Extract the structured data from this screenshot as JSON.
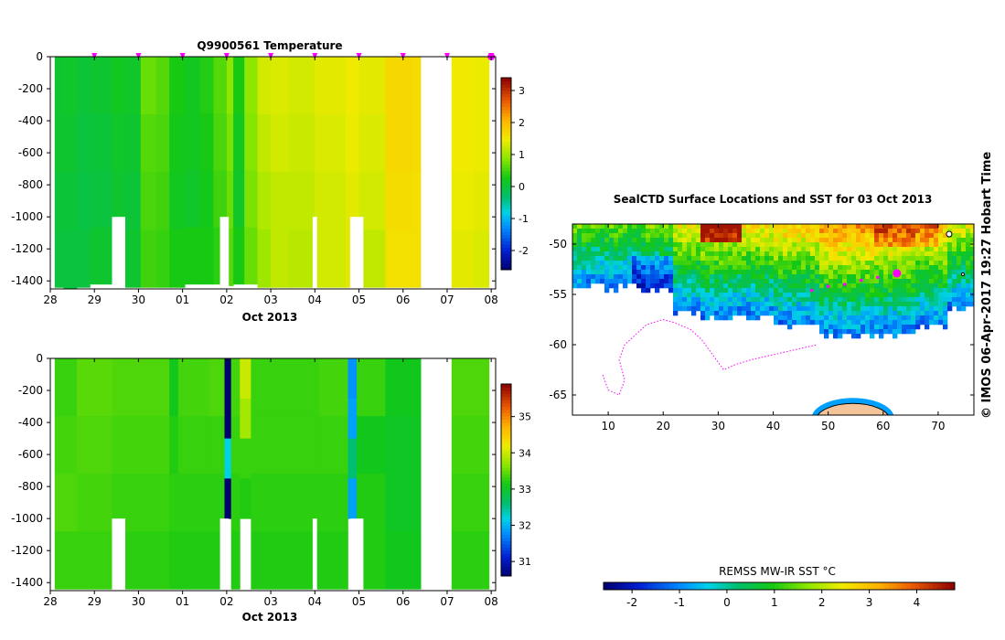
{
  "chart_data": [
    {
      "type": "heatmap",
      "panel": "temperature-section",
      "title": "Q9900561   Temperature",
      "xlabel": "Oct 2013",
      "ylabel": "",
      "x_ticks": [
        "28",
        "29",
        "30",
        "01",
        "02",
        "03",
        "04",
        "05",
        "06",
        "07",
        "08"
      ],
      "x_range": [
        0,
        10.1
      ],
      "y_ticks": [
        0,
        -200,
        -400,
        -600,
        -800,
        -1000,
        -1200,
        -1400
      ],
      "y_range": [
        -1450,
        0
      ],
      "surface_marker_days": [
        1,
        2,
        3,
        4,
        5,
        6,
        7,
        8,
        9,
        10,
        10
      ],
      "colorbar": {
        "ticks": [
          -2,
          -1,
          0,
          1,
          2,
          3
        ],
        "range": [
          -2.6,
          3.4
        ]
      },
      "columns": [
        {
          "x0": 0.1,
          "x1": 0.3,
          "depth": -1440,
          "values": [
            0.1,
            0.1,
            0.05,
            0.0
          ]
        },
        {
          "x0": 0.3,
          "x1": 0.6,
          "depth": -1450,
          "values": [
            0.15,
            0.1,
            0.05,
            0.0
          ]
        },
        {
          "x0": 0.6,
          "x1": 0.9,
          "depth": -1440,
          "values": [
            0.05,
            0.0,
            -0.05,
            0.0
          ]
        },
        {
          "x0": 0.9,
          "x1": 1.4,
          "depth": -1420,
          "values": [
            0.1,
            0.05,
            0.0,
            0.1
          ]
        },
        {
          "x0": 1.4,
          "x1": 1.7,
          "depth": -1420,
          "values": [
            0.2,
            0.15,
            0.1,
            0.1
          ]
        },
        {
          "x0": 1.7,
          "x1": 2.05,
          "depth": -1440,
          "values": [
            0.15,
            0.1,
            0.05,
            0.1
          ]
        },
        {
          "x0": 2.05,
          "x1": 2.4,
          "depth": -1440,
          "values": [
            0.7,
            0.6,
            0.55,
            0.5
          ]
        },
        {
          "x0": 2.4,
          "x1": 2.7,
          "depth": -1440,
          "values": [
            0.6,
            0.55,
            0.5,
            0.45
          ]
        },
        {
          "x0": 2.7,
          "x1": 3.05,
          "depth": -1440,
          "values": [
            0.3,
            0.25,
            0.2,
            0.3
          ]
        },
        {
          "x0": 3.05,
          "x1": 3.4,
          "depth": -1420,
          "values": [
            0.2,
            0.2,
            0.15,
            0.3
          ]
        },
        {
          "x0": 3.4,
          "x1": 3.7,
          "depth": -1420,
          "values": [
            0.35,
            0.3,
            0.25,
            0.3
          ]
        },
        {
          "x0": 3.7,
          "x1": 4.0,
          "depth": -1420,
          "values": [
            0.6,
            0.55,
            0.5,
            0.4
          ]
        },
        {
          "x0": 4.0,
          "x1": 4.15,
          "depth": -1430,
          "values": [
            0.9,
            0.8,
            0.7,
            0.6
          ]
        },
        {
          "x0": 4.15,
          "x1": 4.4,
          "depth": -1420,
          "values": [
            0.3,
            0.2,
            0.15,
            0.3
          ]
        },
        {
          "x0": 4.4,
          "x1": 4.7,
          "depth": -1420,
          "values": [
            0.9,
            0.85,
            0.8,
            0.7
          ]
        },
        {
          "x0": 4.7,
          "x1": 5.0,
          "depth": -1440,
          "values": [
            1.3,
            1.2,
            1.1,
            1.0
          ]
        },
        {
          "x0": 5.0,
          "x1": 5.4,
          "depth": -1440,
          "values": [
            1.35,
            1.3,
            1.2,
            1.2
          ]
        },
        {
          "x0": 5.4,
          "x1": 6.0,
          "depth": -1440,
          "values": [
            1.3,
            1.25,
            1.2,
            1.15
          ]
        },
        {
          "x0": 6.0,
          "x1": 6.7,
          "depth": -1440,
          "values": [
            1.4,
            1.35,
            1.3,
            1.3
          ]
        },
        {
          "x0": 6.7,
          "x1": 7.0,
          "depth": -1440,
          "values": [
            1.5,
            1.45,
            1.4,
            1.4
          ]
        },
        {
          "x0": 7.0,
          "x1": 7.6,
          "depth": -1440,
          "values": [
            1.4,
            1.35,
            1.3,
            1.2
          ]
        },
        {
          "x0": 7.6,
          "x1": 8.2,
          "depth": -1440,
          "values": [
            1.7,
            1.7,
            1.65,
            1.6
          ]
        },
        {
          "x0": 8.2,
          "x1": 8.4,
          "depth": -1440,
          "values": [
            1.65,
            1.65,
            1.6,
            1.6
          ]
        },
        {
          "x0": 9.1,
          "x1": 9.6,
          "depth": -1440,
          "values": [
            1.5,
            1.5,
            1.45,
            1.4
          ]
        },
        {
          "x0": 9.6,
          "x1": 9.95,
          "depth": -1440,
          "values": [
            1.45,
            1.45,
            1.4,
            1.35
          ]
        }
      ],
      "gaps": [
        {
          "x0": 1.4,
          "x1": 1.7,
          "top": -1000
        },
        {
          "x0": 3.85,
          "x1": 4.05,
          "top": -1000
        },
        {
          "x0": 5.95,
          "x1": 6.05,
          "top": -1000
        },
        {
          "x0": 6.8,
          "x1": 7.1,
          "top": -1000
        }
      ]
    },
    {
      "type": "heatmap",
      "panel": "salinity-section",
      "title": "",
      "xlabel": "Oct 2013",
      "ylabel": "",
      "x_ticks": [
        "28",
        "29",
        "30",
        "01",
        "02",
        "03",
        "04",
        "05",
        "06",
        "07",
        "08"
      ],
      "x_range": [
        0,
        10.1
      ],
      "y_ticks": [
        0,
        -200,
        -400,
        -600,
        -800,
        -1000,
        -1200,
        -1400
      ],
      "y_range": [
        -1450,
        0
      ],
      "colorbar": {
        "ticks": [
          31,
          32,
          33,
          34,
          35
        ],
        "range": [
          30.6,
          35.9
        ]
      },
      "columns": [
        {
          "x0": 0.1,
          "x1": 0.6,
          "depth": -1440,
          "values": [
            33.3,
            33.35,
            33.4,
            33.3
          ]
        },
        {
          "x0": 0.6,
          "x1": 1.4,
          "depth": -1440,
          "values": [
            33.45,
            33.4,
            33.35,
            33.3
          ]
        },
        {
          "x0": 1.4,
          "x1": 2.7,
          "depth": -1440,
          "values": [
            33.4,
            33.35,
            33.3,
            33.25
          ]
        },
        {
          "x0": 2.7,
          "x1": 2.9,
          "depth": -1440,
          "values": [
            33.1,
            33.2,
            33.25,
            33.2
          ]
        },
        {
          "x0": 2.9,
          "x1": 3.6,
          "depth": -1440,
          "values": [
            33.35,
            33.3,
            33.25,
            33.2
          ]
        },
        {
          "x0": 3.6,
          "x1": 3.95,
          "depth": -1440,
          "values": [
            33.4,
            33.3,
            33.25,
            33.2
          ]
        },
        {
          "x0": 3.95,
          "x1": 4.1,
          "depth": -1000,
          "values": [
            30.6,
            30.6,
            32.2,
            30.6
          ]
        },
        {
          "x0": 4.1,
          "x1": 4.3,
          "depth": -1440,
          "values": [
            33.35,
            33.3,
            33.25,
            33.2
          ]
        },
        {
          "x0": 4.3,
          "x1": 4.55,
          "depth": -1000,
          "values": [
            34.0,
            33.8,
            33.3,
            33.2
          ]
        },
        {
          "x0": 4.55,
          "x1": 5.6,
          "depth": -1440,
          "values": [
            33.3,
            33.3,
            33.25,
            33.2
          ]
        },
        {
          "x0": 5.6,
          "x1": 6.1,
          "depth": -1440,
          "values": [
            33.3,
            33.3,
            33.25,
            33.2
          ]
        },
        {
          "x0": 6.1,
          "x1": 6.75,
          "depth": -1440,
          "values": [
            33.35,
            33.3,
            33.25,
            33.2
          ]
        },
        {
          "x0": 6.75,
          "x1": 6.95,
          "depth": -1000,
          "values": [
            31.8,
            31.9,
            32.6,
            31.9
          ]
        },
        {
          "x0": 6.95,
          "x1": 7.6,
          "depth": -1440,
          "values": [
            33.3,
            33.1,
            33.2,
            33.2
          ]
        },
        {
          "x0": 7.6,
          "x1": 8.4,
          "depth": -1440,
          "values": [
            33.1,
            33.05,
            33.05,
            33.1
          ]
        },
        {
          "x0": 9.1,
          "x1": 9.95,
          "depth": -1440,
          "values": [
            33.4,
            33.35,
            33.3,
            33.25
          ]
        }
      ],
      "gaps": [
        {
          "x0": 1.4,
          "x1": 1.7,
          "top": -1000
        },
        {
          "x0": 3.85,
          "x1": 4.05,
          "top": -1000
        },
        {
          "x0": 5.95,
          "x1": 6.05,
          "top": -1000
        },
        {
          "x0": 6.8,
          "x1": 7.1,
          "top": -1000
        }
      ]
    },
    {
      "type": "heatmap",
      "panel": "sst-map",
      "title": "SealCTD Surface Locations and SST for 03 Oct 2013",
      "x_ticks": [
        10,
        20,
        30,
        40,
        50,
        60,
        70
      ],
      "x_range": [
        3.5,
        76.5
      ],
      "y_ticks": [
        -50,
        -55,
        -60,
        -65
      ],
      "y_range": [
        -67,
        -48
      ],
      "colorbar_label": "REMSS MW-IR SST °C",
      "colorbar": {
        "ticks": [
          -2,
          -1,
          0,
          1,
          2,
          3,
          4
        ],
        "range": [
          -2.6,
          4.8
        ]
      },
      "track_recent": [
        [
          47,
          -54.6
        ],
        [
          50,
          -54.2
        ],
        [
          53,
          -54.0
        ],
        [
          56,
          -53.6
        ],
        [
          59,
          -53.3
        ],
        [
          62.5,
          -52.9
        ]
      ],
      "current_position": [
        62.5,
        -52.9
      ],
      "track_old": [
        [
          9,
          -63
        ],
        [
          10,
          -64.5
        ],
        [
          12,
          -65
        ],
        [
          13,
          -63.5
        ],
        [
          12,
          -61.5
        ],
        [
          13,
          -60
        ],
        [
          15,
          -59
        ],
        [
          17,
          -58
        ],
        [
          20,
          -57.5
        ],
        [
          22,
          -57.8
        ],
        [
          25,
          -58.5
        ],
        [
          27,
          -59.5
        ],
        [
          29,
          -61
        ],
        [
          31,
          -62.5
        ],
        [
          33,
          -62
        ],
        [
          36,
          -61.5
        ],
        [
          40,
          -61
        ],
        [
          44,
          -60.5
        ],
        [
          48,
          -60
        ]
      ]
    }
  ],
  "credit": {
    "text": "© IMOS 06-Apr-2017 19:27 Hobart Time"
  },
  "colors": {
    "track": "#ff00ff",
    "land_fill": "#f3c39a"
  }
}
